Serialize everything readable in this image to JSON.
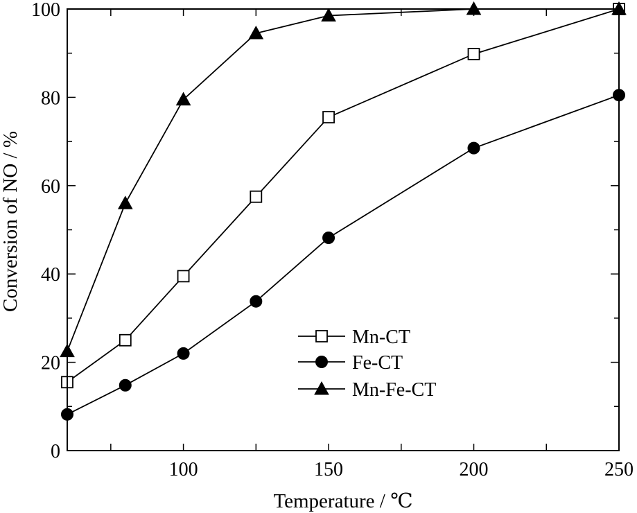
{
  "chart_data": {
    "type": "line",
    "xlabel": "Temperature / ℃",
    "ylabel": "Conversion of  NO / %",
    "xlim": [
      60,
      250
    ],
    "ylim": [
      0,
      100
    ],
    "x_ticks": [
      100,
      150,
      200,
      250
    ],
    "x_minor_ticks": [
      75,
      100,
      125,
      150,
      175,
      200,
      225
    ],
    "y_ticks": [
      0,
      20,
      40,
      60,
      80,
      100
    ],
    "y_minor_ticks": [
      10,
      30,
      50,
      70,
      90
    ],
    "grid": false,
    "legend_position": "bottom-center",
    "series": [
      {
        "name": "Mn-CT",
        "marker": "open-square",
        "color": "#000000",
        "x": [
          60,
          80,
          100,
          125,
          150,
          200,
          250
        ],
        "y": [
          15.5,
          25,
          39.5,
          57.5,
          75.5,
          89.8,
          100
        ]
      },
      {
        "name": "Fe-CT",
        "marker": "filled-circle",
        "color": "#000000",
        "x": [
          60,
          80,
          100,
          125,
          150,
          200,
          250
        ],
        "y": [
          8.2,
          14.8,
          22,
          33.8,
          48.2,
          68.5,
          80.5
        ]
      },
      {
        "name": "Mn-Fe-CT",
        "marker": "filled-triangle",
        "color": "#000000",
        "x": [
          60,
          80,
          100,
          125,
          150,
          200,
          250
        ],
        "y": [
          22.5,
          56,
          79.5,
          94.5,
          98.5,
          100,
          100
        ]
      }
    ]
  }
}
